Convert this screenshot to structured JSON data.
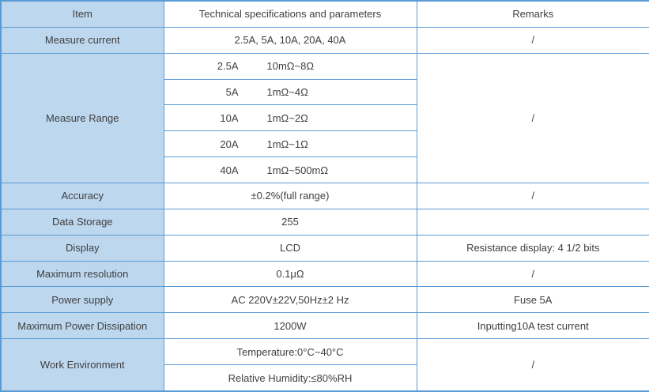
{
  "table": {
    "colors": {
      "item_column_bg": "#BDD7EE",
      "border": "#5B9BD5",
      "text": "#3F3F3F",
      "body_bg": "#FFFFFF"
    },
    "header": {
      "item": "Item",
      "spec": "Technical specifications and parameters",
      "remarks": "Remarks"
    },
    "rows": {
      "measure_current": {
        "item": "Measure current",
        "spec": "2.5A, 5A, 10A, 20A, 40A",
        "remarks": "/"
      },
      "measure_range": {
        "item": "Measure Range",
        "remarks": "/",
        "specs": [
          {
            "current": "2.5A",
            "range": "10mΩ~8Ω"
          },
          {
            "current": "5A",
            "range": "1mΩ~4Ω"
          },
          {
            "current": "10A",
            "range": "1mΩ~2Ω"
          },
          {
            "current": "20A",
            "range": "1mΩ~1Ω"
          },
          {
            "current": "40A",
            "range": "1mΩ~500mΩ"
          }
        ]
      },
      "accuracy": {
        "item": "Accuracy",
        "spec": "±0.2%(full range)",
        "remarks": "/"
      },
      "data_storage": {
        "item": "Data Storage",
        "spec": "255",
        "remarks": ""
      },
      "display": {
        "item": "Display",
        "spec": "LCD",
        "remarks": "Resistance display: 4 1/2 bits"
      },
      "max_resolution": {
        "item": "Maximum resolution",
        "spec": "0.1μΩ",
        "remarks": "/"
      },
      "power_supply": {
        "item": "Power supply",
        "spec": "AC 220V±22V,50Hz±2 Hz",
        "remarks": "Fuse 5A"
      },
      "max_power_dissipation": {
        "item": "Maximum Power Dissipation",
        "spec": "1200W",
        "remarks": "Inputting10A test current"
      },
      "work_environment": {
        "item": "Work Environment",
        "remarks": "/",
        "specs": [
          "Temperature:0°C~40°C",
          "Relative Humidity:≤80%RH"
        ]
      }
    }
  }
}
